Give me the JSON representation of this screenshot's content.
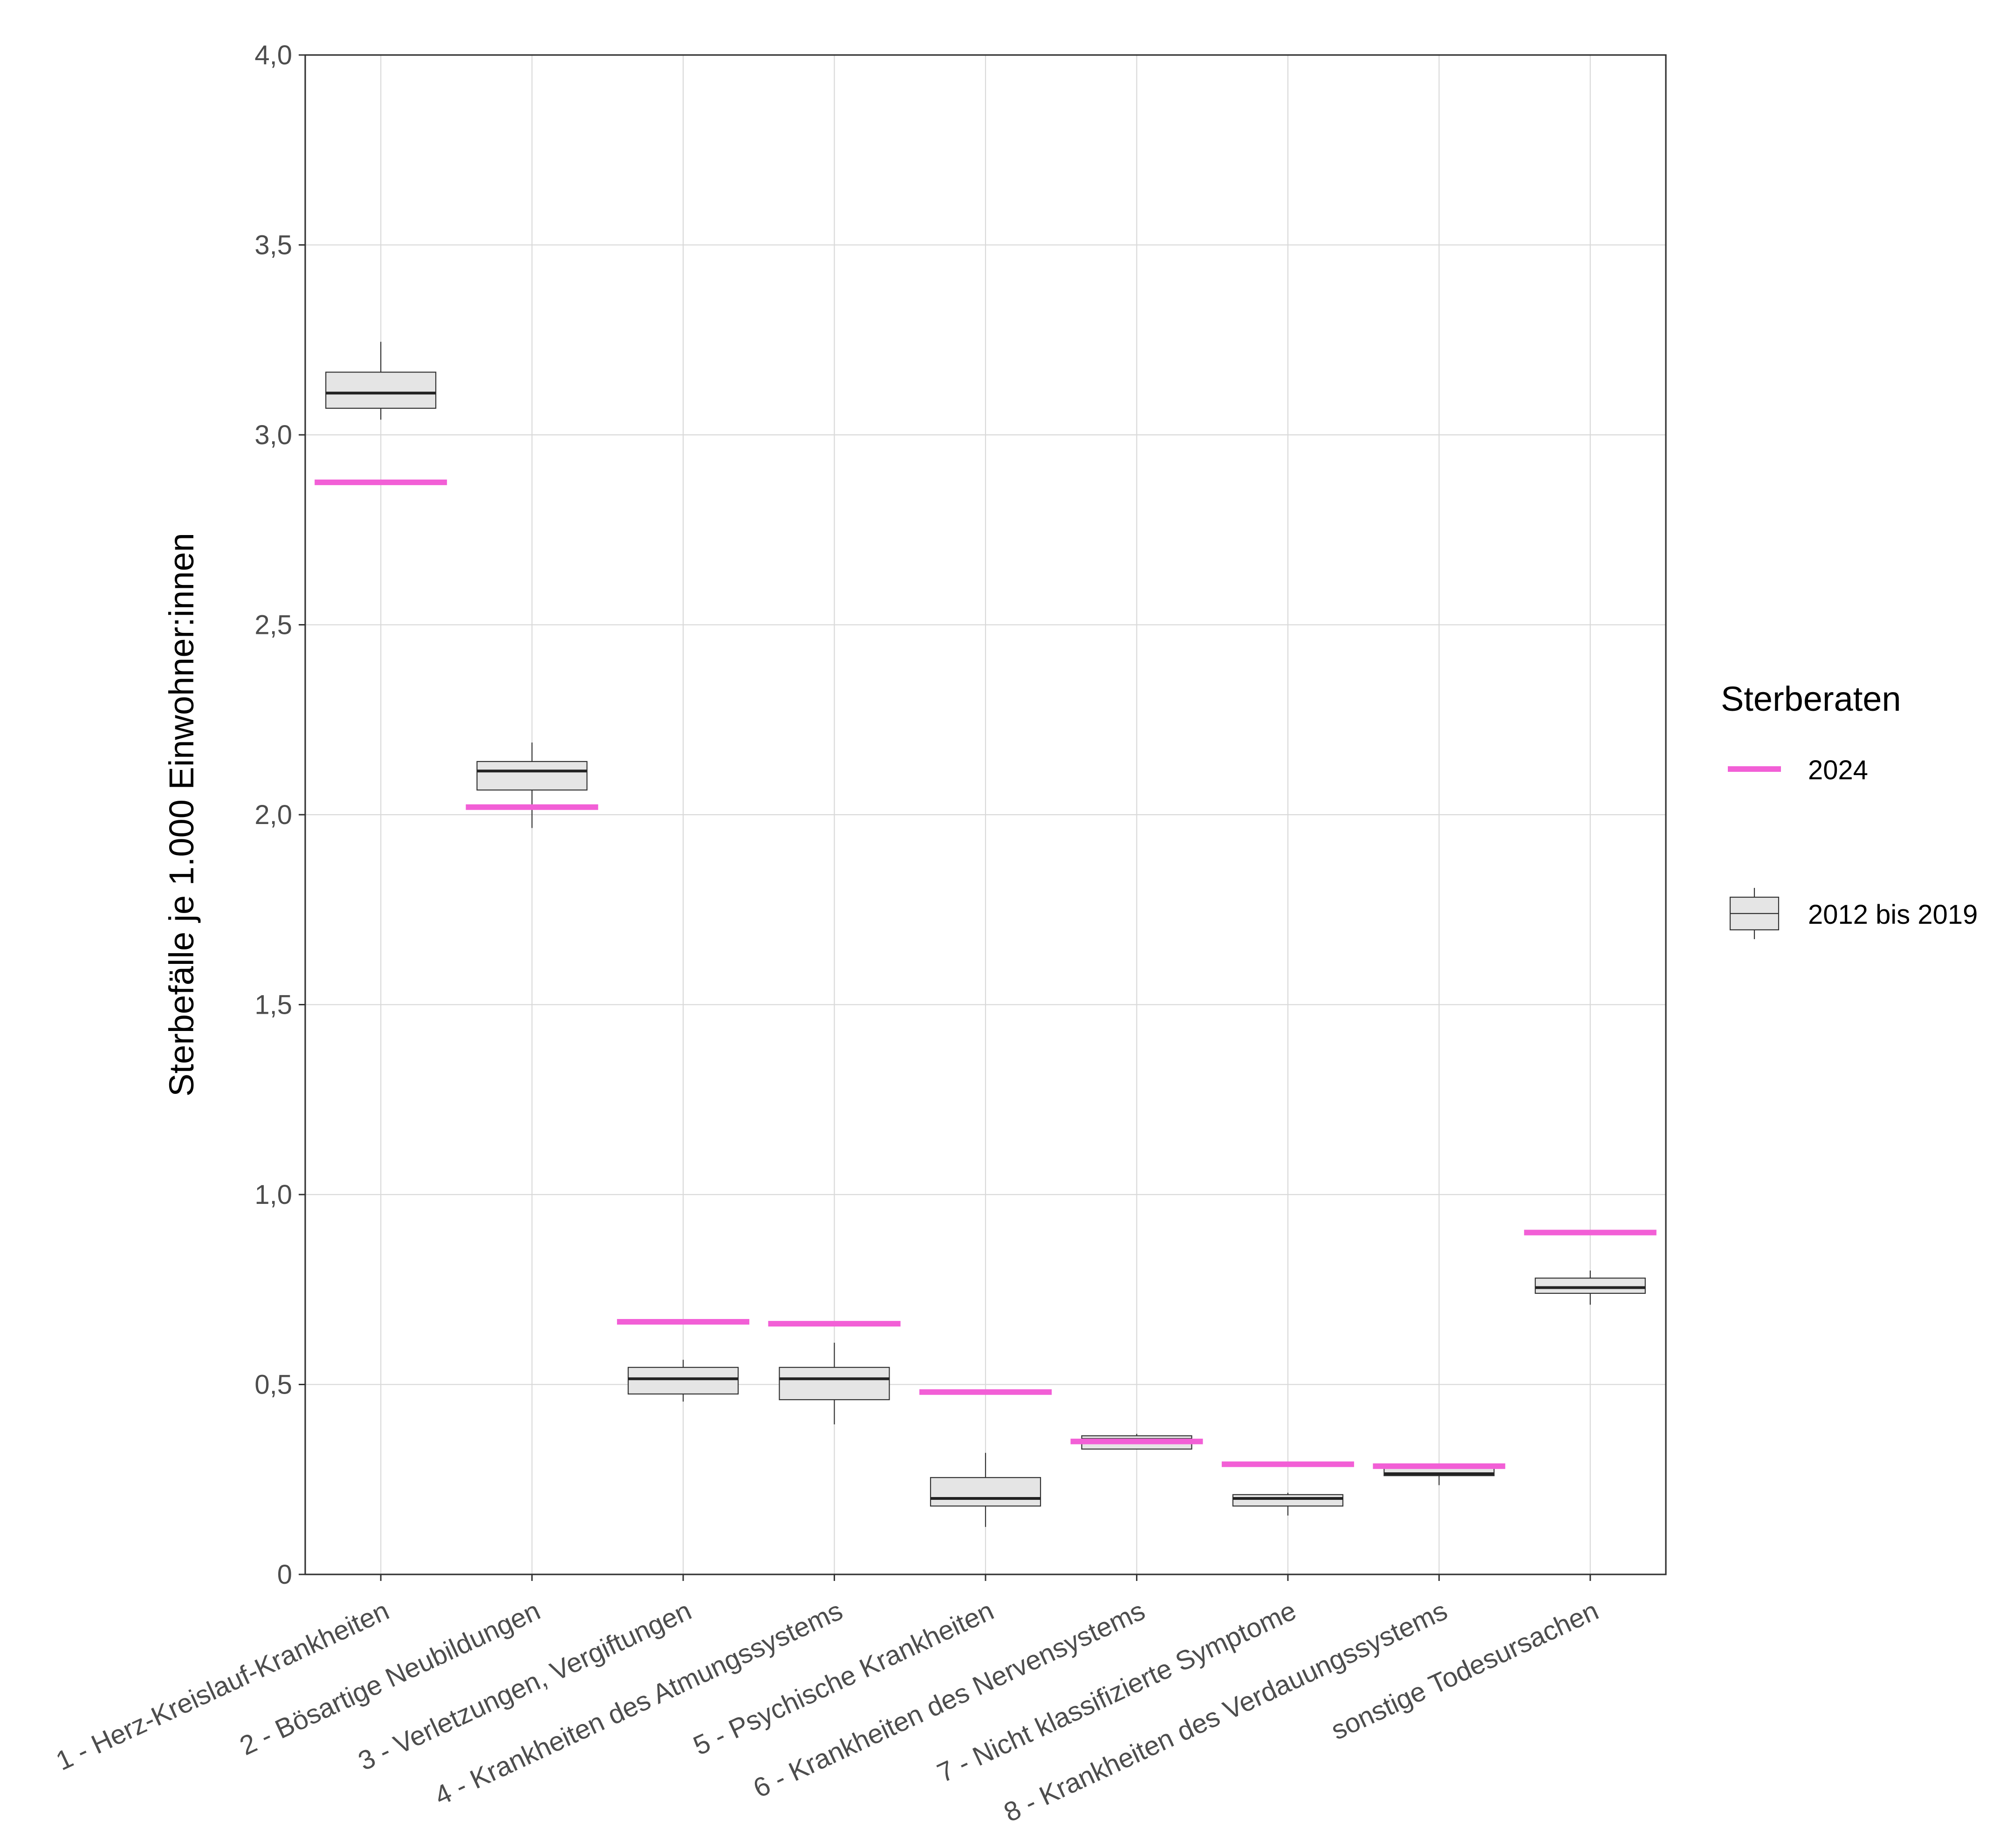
{
  "chart_data": {
    "type": "boxplot",
    "ylabel": "Sterbefälle je 1.000 Einwohner:innen",
    "ylim": [
      0,
      4.0
    ],
    "y_ticks": [
      0,
      0.5,
      1.0,
      1.5,
      2.0,
      2.5,
      3.0,
      3.5,
      4.0
    ],
    "y_tick_labels": [
      "0",
      "0,5",
      "1,0",
      "1,5",
      "2,0",
      "2,5",
      "3,0",
      "3,5",
      "4,0"
    ],
    "categories": [
      "1 - Herz-Kreislauf-Krankheiten",
      "2 - Bösartige Neubildungen",
      "3 - Verletzungen, Vergiftungen",
      "4 - Krankheiten des Atmungssystems",
      "5 - Psychische Krankheiten",
      "6 - Krankheiten des Nervensystems",
      "7 - Nicht klassifizierte Symptome",
      "8 - Krankheiten des Verdauungssystems",
      "sonstige Todesursachen"
    ],
    "grid": true,
    "legend_position": "right",
    "legend": {
      "title": "Sterberaten",
      "entries": [
        {
          "label": "2024",
          "kind": "line",
          "color": "#f25fd6"
        },
        {
          "label": "2012 bis 2019",
          "kind": "box",
          "color": "#e5e5e5"
        }
      ]
    },
    "series": [
      {
        "name": "2012 bis 2019",
        "kind": "box",
        "color": "#e5e5e5",
        "stroke": "#333333",
        "boxes": [
          {
            "min": 3.04,
            "q1": 3.07,
            "median": 3.11,
            "q3": 3.165,
            "max": 3.245
          },
          {
            "min": 1.965,
            "q1": 2.065,
            "median": 2.115,
            "q3": 2.14,
            "max": 2.19
          },
          {
            "min": 0.455,
            "q1": 0.475,
            "median": 0.515,
            "q3": 0.545,
            "max": 0.565
          },
          {
            "min": 0.395,
            "q1": 0.46,
            "median": 0.515,
            "q3": 0.545,
            "max": 0.61
          },
          {
            "min": 0.125,
            "q1": 0.18,
            "median": 0.2,
            "q3": 0.255,
            "max": 0.32
          },
          {
            "min": 0.33,
            "q1": 0.33,
            "median": 0.355,
            "q3": 0.365,
            "max": 0.37
          },
          {
            "min": 0.155,
            "q1": 0.18,
            "median": 0.2,
            "q3": 0.21,
            "max": 0.215
          },
          {
            "min": 0.235,
            "q1": 0.26,
            "median": 0.265,
            "q3": 0.28,
            "max": 0.285
          },
          {
            "min": 0.71,
            "q1": 0.74,
            "median": 0.755,
            "q3": 0.78,
            "max": 0.8
          }
        ]
      },
      {
        "name": "2024",
        "kind": "segment",
        "color": "#f25fd6",
        "values": [
          2.875,
          2.02,
          0.665,
          0.66,
          0.48,
          0.35,
          0.29,
          0.285,
          0.9
        ]
      }
    ]
  }
}
